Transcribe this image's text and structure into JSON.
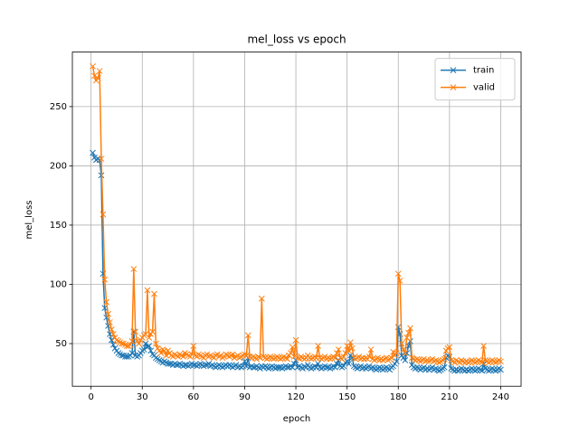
{
  "chart_data": {
    "type": "line",
    "title": "mel_loss vs epoch",
    "xlabel": "epoch",
    "ylabel": "mel_loss",
    "x": [
      1,
      2,
      3,
      4,
      5,
      6,
      7,
      8,
      9,
      10,
      11,
      12,
      13,
      14,
      15,
      16,
      17,
      18,
      19,
      20,
      21,
      22,
      23,
      24,
      25,
      26,
      27,
      28,
      29,
      30,
      31,
      32,
      33,
      34,
      35,
      36,
      37,
      38,
      39,
      40,
      41,
      42,
      43,
      44,
      45,
      46,
      47,
      48,
      49,
      50,
      51,
      52,
      53,
      54,
      55,
      56,
      57,
      58,
      59,
      60,
      61,
      62,
      63,
      64,
      65,
      66,
      67,
      68,
      69,
      70,
      71,
      72,
      73,
      74,
      75,
      76,
      77,
      78,
      79,
      80,
      81,
      82,
      83,
      84,
      85,
      86,
      87,
      88,
      89,
      90,
      91,
      92,
      93,
      94,
      95,
      96,
      97,
      98,
      99,
      100,
      101,
      102,
      103,
      104,
      105,
      106,
      107,
      108,
      109,
      110,
      111,
      112,
      113,
      114,
      115,
      116,
      117,
      118,
      119,
      120,
      121,
      122,
      123,
      124,
      125,
      126,
      127,
      128,
      129,
      130,
      131,
      132,
      133,
      134,
      135,
      136,
      137,
      138,
      139,
      140,
      141,
      142,
      143,
      144,
      145,
      146,
      147,
      148,
      149,
      150,
      151,
      152,
      153,
      154,
      155,
      156,
      157,
      158,
      159,
      160,
      161,
      162,
      163,
      164,
      165,
      166,
      167,
      168,
      169,
      170,
      171,
      172,
      173,
      174,
      175,
      176,
      177,
      178,
      179,
      180,
      181,
      182,
      183,
      184,
      185,
      186,
      187,
      188,
      189,
      190,
      191,
      192,
      193,
      194,
      195,
      196,
      197,
      198,
      199,
      200,
      201,
      202,
      203,
      204,
      205,
      206,
      207,
      208,
      209,
      210,
      211,
      212,
      213,
      214,
      215,
      216,
      217,
      218,
      219,
      220,
      221,
      222,
      223,
      224,
      225,
      226,
      227,
      228,
      229,
      230,
      231,
      232,
      233,
      234,
      235,
      236,
      237,
      238,
      239,
      240
    ],
    "series": [
      {
        "name": "train",
        "color": "#1f77b4",
        "values": [
          211,
          207,
          205,
          206,
          205,
          192,
          109,
          80,
          72,
          65,
          58,
          53,
          49,
          46,
          44,
          42,
          41,
          40,
          40,
          39,
          39,
          39,
          40,
          42,
          60,
          40,
          39,
          40,
          42,
          44,
          45,
          50,
          47,
          48,
          44,
          41,
          40,
          38,
          37,
          36,
          35,
          34,
          35,
          34,
          33,
          33,
          33,
          32,
          33,
          32,
          32,
          33,
          32,
          31,
          32,
          32,
          31,
          32,
          33,
          32,
          32,
          31,
          32,
          33,
          32,
          31,
          32,
          32,
          33,
          31,
          32,
          31,
          30,
          31,
          32,
          31,
          30,
          31,
          32,
          31,
          32,
          31,
          30,
          31,
          32,
          30,
          31,
          30,
          31,
          35,
          31,
          38,
          30,
          31,
          30,
          30,
          31,
          30,
          29,
          31,
          30,
          31,
          30,
          29,
          30,
          31,
          30,
          29,
          30,
          30,
          30,
          29,
          30,
          31,
          30,
          30,
          31,
          30,
          33,
          36,
          30,
          31,
          30,
          29,
          31,
          30,
          32,
          30,
          29,
          30,
          31,
          30,
          33,
          30,
          29,
          30,
          31,
          30,
          30,
          29,
          30,
          31,
          30,
          33,
          36,
          31,
          30,
          31,
          34,
          35,
          33,
          40,
          38,
          31,
          30,
          29,
          30,
          31,
          29,
          30,
          29,
          30,
          31,
          29,
          30,
          29,
          28,
          29,
          30,
          29,
          28,
          29,
          30,
          29,
          28,
          30,
          31,
          33,
          35,
          64,
          58,
          40,
          38,
          36,
          42,
          48,
          52,
          32,
          30,
          29,
          30,
          29,
          28,
          29,
          30,
          28,
          29,
          28,
          29,
          30,
          28,
          29,
          28,
          27,
          28,
          29,
          30,
          38,
          40,
          39,
          29,
          28,
          27,
          28,
          27,
          28,
          29,
          28,
          27,
          28,
          27,
          28,
          29,
          28,
          27,
          28,
          29,
          28,
          27,
          33,
          29,
          28,
          27,
          28,
          29,
          28,
          27,
          28,
          29,
          28
        ]
      },
      {
        "name": "valid",
        "color": "#ff7f0e",
        "values": [
          284,
          276,
          272,
          274,
          280,
          206,
          159,
          104,
          85,
          75,
          68,
          62,
          58,
          55,
          53,
          52,
          51,
          50,
          50,
          49,
          48,
          48,
          49,
          52,
          113,
          60,
          52,
          50,
          53,
          55,
          57,
          58,
          95,
          55,
          58,
          60,
          92,
          50,
          46,
          44,
          42,
          45,
          44,
          40,
          44,
          42,
          40,
          39,
          41,
          40,
          39,
          41,
          40,
          39,
          42,
          41,
          40,
          39,
          41,
          48,
          40,
          39,
          41,
          40,
          39,
          38,
          40,
          41,
          39,
          40,
          39,
          38,
          40,
          41,
          39,
          40,
          38,
          39,
          41,
          40,
          39,
          40,
          41,
          38,
          39,
          40,
          38,
          39,
          40,
          41,
          40,
          57,
          39,
          38,
          39,
          38,
          37,
          39,
          38,
          88,
          39,
          38,
          37,
          38,
          39,
          38,
          37,
          38,
          39,
          38,
          37,
          38,
          39,
          38,
          37,
          40,
          42,
          47,
          39,
          53,
          38,
          37,
          39,
          38,
          37,
          38,
          40,
          38,
          37,
          38,
          39,
          38,
          48,
          38,
          37,
          38,
          39,
          37,
          38,
          37,
          38,
          39,
          38,
          42,
          45,
          38,
          37,
          39,
          42,
          48,
          44,
          51,
          46,
          38,
          37,
          38,
          39,
          37,
          38,
          37,
          38,
          37,
          39,
          45,
          37,
          36,
          37,
          38,
          36,
          37,
          36,
          37,
          38,
          36,
          37,
          38,
          43,
          40,
          42,
          109,
          103,
          50,
          45,
          42,
          55,
          59,
          63,
          38,
          37,
          36,
          37,
          36,
          35,
          36,
          37,
          35,
          36,
          35,
          36,
          37,
          35,
          36,
          35,
          34,
          35,
          36,
          37,
          44,
          46,
          47,
          36,
          35,
          34,
          36,
          35,
          34,
          36,
          35,
          34,
          35,
          34,
          35,
          36,
          35,
          34,
          35,
          36,
          35,
          34,
          48,
          36,
          35,
          34,
          35,
          36,
          35,
          34,
          35,
          36,
          35
        ]
      }
    ],
    "xlim": [
      -10.95,
      251.95
    ],
    "xticks": [
      0,
      30,
      60,
      90,
      120,
      150,
      180,
      210,
      240
    ],
    "ylim": [
      14,
      296
    ],
    "yticks": [
      50,
      100,
      150,
      200,
      250
    ],
    "grid": true,
    "legend": "upper right",
    "marker": "x"
  }
}
